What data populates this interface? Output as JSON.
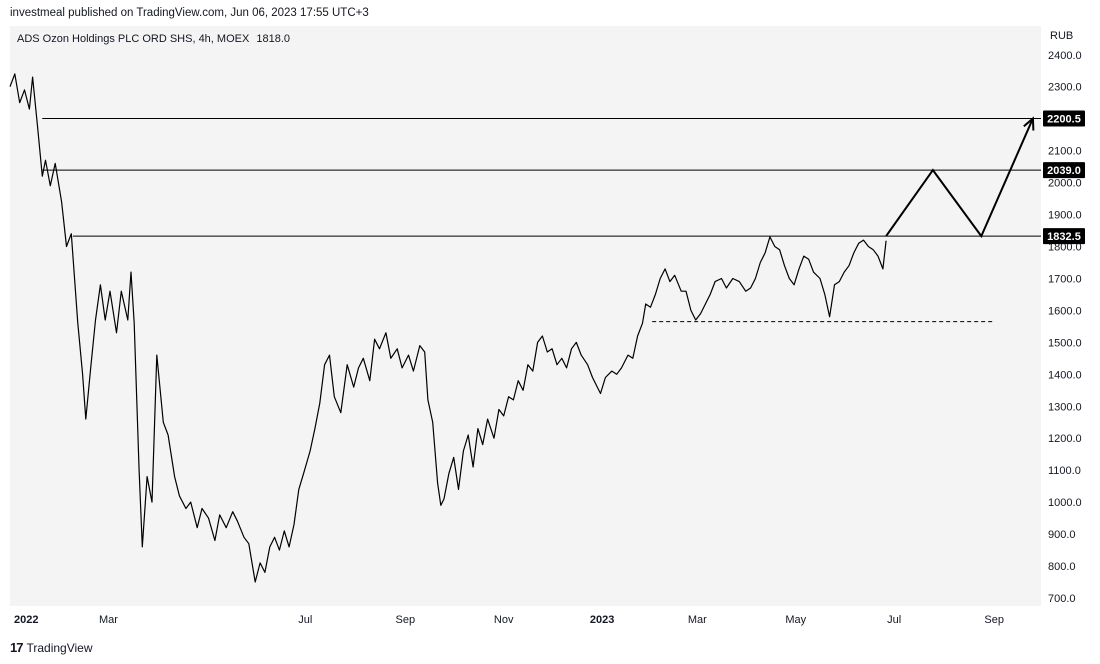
{
  "header": {
    "published": "investmeal published on TradingView.com, Jun 06, 2023 17:55 UTC+3"
  },
  "legend": {
    "symbol": "ADS Ozon Holdings PLC ORD SHS, 4h, MOEX",
    "last_price": "1818.0"
  },
  "footer": {
    "brand": "TradingView",
    "logo_glyph": "17"
  },
  "chart_data": {
    "type": "line",
    "currency": "RUB",
    "ylim": [
      675,
      2490
    ],
    "y_ticks": [
      700,
      800,
      900,
      1000,
      1100,
      1200,
      1300,
      1400,
      1500,
      1600,
      1700,
      1800,
      1900,
      2000,
      2100,
      2200,
      2300,
      2400
    ],
    "y_tick_labels": [
      "700.0",
      "800.0",
      "900.0",
      "1000.0",
      "1100.0",
      "1200.0",
      "1300.0",
      "1400.0",
      "1500.0",
      "1600.0",
      "1700.0",
      "1800.0",
      "1900.0",
      "2000.0",
      "2100.0",
      "2200.0",
      "2300.0",
      "2400.0"
    ],
    "xlim": [
      "2021-12-30",
      "2023-09-30"
    ],
    "x_ticks": [
      {
        "date": "2022-01-01",
        "label": "2022",
        "bold": true
      },
      {
        "date": "2022-03-01",
        "label": "Mar",
        "bold": false
      },
      {
        "date": "2022-07-01",
        "label": "Jul",
        "bold": false
      },
      {
        "date": "2022-09-01",
        "label": "Sep",
        "bold": false
      },
      {
        "date": "2022-11-01",
        "label": "Nov",
        "bold": false
      },
      {
        "date": "2023-01-01",
        "label": "2023",
        "bold": true
      },
      {
        "date": "2023-03-01",
        "label": "Mar",
        "bold": false
      },
      {
        "date": "2023-05-01",
        "label": "May",
        "bold": false
      },
      {
        "date": "2023-07-01",
        "label": "Jul",
        "bold": false
      },
      {
        "date": "2023-09-01",
        "label": "Sep",
        "bold": false
      }
    ],
    "series": [
      {
        "points": [
          [
            "2021-12-30",
            2300
          ],
          [
            "2022-01-02",
            2340
          ],
          [
            "2022-01-05",
            2250
          ],
          [
            "2022-01-08",
            2290
          ],
          [
            "2022-01-11",
            2230
          ],
          [
            "2022-01-13",
            2330
          ],
          [
            "2022-01-16",
            2180
          ],
          [
            "2022-01-19",
            2020
          ],
          [
            "2022-01-21",
            2070
          ],
          [
            "2022-01-24",
            1990
          ],
          [
            "2022-01-27",
            2060
          ],
          [
            "2022-01-31",
            1940
          ],
          [
            "2022-02-03",
            1800
          ],
          [
            "2022-02-06",
            1840
          ],
          [
            "2022-02-10",
            1560
          ],
          [
            "2022-02-13",
            1400
          ],
          [
            "2022-02-15",
            1260
          ],
          [
            "2022-02-18",
            1420
          ],
          [
            "2022-02-21",
            1570
          ],
          [
            "2022-02-24",
            1680
          ],
          [
            "2022-02-27",
            1570
          ],
          [
            "2022-03-02",
            1660
          ],
          [
            "2022-03-06",
            1530
          ],
          [
            "2022-03-09",
            1660
          ],
          [
            "2022-03-13",
            1570
          ],
          [
            "2022-03-15",
            1720
          ],
          [
            "2022-03-17",
            1560
          ],
          [
            "2022-03-20",
            1100
          ],
          [
            "2022-03-22",
            860
          ],
          [
            "2022-03-25",
            1080
          ],
          [
            "2022-03-28",
            1000
          ],
          [
            "2022-03-31",
            1460
          ],
          [
            "2022-04-04",
            1250
          ],
          [
            "2022-04-07",
            1210
          ],
          [
            "2022-04-11",
            1080
          ],
          [
            "2022-04-14",
            1020
          ],
          [
            "2022-04-18",
            980
          ],
          [
            "2022-04-21",
            1000
          ],
          [
            "2022-04-25",
            920
          ],
          [
            "2022-04-28",
            980
          ],
          [
            "2022-05-02",
            950
          ],
          [
            "2022-05-06",
            880
          ],
          [
            "2022-05-09",
            960
          ],
          [
            "2022-05-13",
            920
          ],
          [
            "2022-05-17",
            970
          ],
          [
            "2022-05-20",
            940
          ],
          [
            "2022-05-24",
            890
          ],
          [
            "2022-05-27",
            870
          ],
          [
            "2022-05-31",
            750
          ],
          [
            "2022-06-03",
            810
          ],
          [
            "2022-06-06",
            780
          ],
          [
            "2022-06-09",
            860
          ],
          [
            "2022-06-12",
            890
          ],
          [
            "2022-06-15",
            850
          ],
          [
            "2022-06-18",
            910
          ],
          [
            "2022-06-21",
            860
          ],
          [
            "2022-06-24",
            930
          ],
          [
            "2022-06-27",
            1040
          ],
          [
            "2022-06-30",
            1090
          ],
          [
            "2022-07-04",
            1160
          ],
          [
            "2022-07-07",
            1230
          ],
          [
            "2022-07-10",
            1310
          ],
          [
            "2022-07-13",
            1430
          ],
          [
            "2022-07-16",
            1460
          ],
          [
            "2022-07-19",
            1330
          ],
          [
            "2022-07-23",
            1280
          ],
          [
            "2022-07-27",
            1430
          ],
          [
            "2022-07-31",
            1360
          ],
          [
            "2022-08-03",
            1420
          ],
          [
            "2022-08-06",
            1450
          ],
          [
            "2022-08-10",
            1380
          ],
          [
            "2022-08-13",
            1510
          ],
          [
            "2022-08-16",
            1480
          ],
          [
            "2022-08-20",
            1530
          ],
          [
            "2022-08-23",
            1450
          ],
          [
            "2022-08-27",
            1480
          ],
          [
            "2022-08-30",
            1420
          ],
          [
            "2022-09-03",
            1460
          ],
          [
            "2022-09-06",
            1410
          ],
          [
            "2022-09-10",
            1490
          ],
          [
            "2022-09-13",
            1470
          ],
          [
            "2022-09-15",
            1320
          ],
          [
            "2022-09-18",
            1250
          ],
          [
            "2022-09-21",
            1060
          ],
          [
            "2022-09-23",
            990
          ],
          [
            "2022-09-25",
            1010
          ],
          [
            "2022-09-28",
            1090
          ],
          [
            "2022-10-01",
            1140
          ],
          [
            "2022-10-04",
            1040
          ],
          [
            "2022-10-07",
            1160
          ],
          [
            "2022-10-10",
            1210
          ],
          [
            "2022-10-13",
            1110
          ],
          [
            "2022-10-16",
            1230
          ],
          [
            "2022-10-19",
            1180
          ],
          [
            "2022-10-22",
            1260
          ],
          [
            "2022-10-26",
            1200
          ],
          [
            "2022-10-29",
            1290
          ],
          [
            "2022-11-01",
            1270
          ],
          [
            "2022-11-04",
            1330
          ],
          [
            "2022-11-07",
            1320
          ],
          [
            "2022-11-10",
            1380
          ],
          [
            "2022-11-13",
            1350
          ],
          [
            "2022-11-16",
            1430
          ],
          [
            "2022-11-19",
            1410
          ],
          [
            "2022-11-22",
            1500
          ],
          [
            "2022-11-25",
            1520
          ],
          [
            "2022-11-28",
            1470
          ],
          [
            "2022-12-01",
            1480
          ],
          [
            "2022-12-04",
            1430
          ],
          [
            "2022-12-07",
            1450
          ],
          [
            "2022-12-10",
            1420
          ],
          [
            "2022-12-13",
            1480
          ],
          [
            "2022-12-16",
            1500
          ],
          [
            "2022-12-19",
            1460
          ],
          [
            "2022-12-23",
            1430
          ],
          [
            "2022-12-26",
            1390
          ],
          [
            "2022-12-29",
            1360
          ],
          [
            "2022-12-31",
            1340
          ],
          [
            "2023-01-03",
            1390
          ],
          [
            "2023-01-07",
            1410
          ],
          [
            "2023-01-10",
            1400
          ],
          [
            "2023-01-13",
            1420
          ],
          [
            "2023-01-17",
            1460
          ],
          [
            "2023-01-20",
            1450
          ],
          [
            "2023-01-23",
            1520
          ],
          [
            "2023-01-26",
            1560
          ],
          [
            "2023-01-28",
            1620
          ],
          [
            "2023-01-31",
            1610
          ],
          [
            "2023-02-03",
            1650
          ],
          [
            "2023-02-06",
            1700
          ],
          [
            "2023-02-09",
            1730
          ],
          [
            "2023-02-12",
            1690
          ],
          [
            "2023-02-15",
            1710
          ],
          [
            "2023-02-19",
            1660
          ],
          [
            "2023-02-22",
            1660
          ],
          [
            "2023-02-25",
            1600
          ],
          [
            "2023-02-28",
            1570
          ],
          [
            "2023-03-03",
            1590
          ],
          [
            "2023-03-06",
            1620
          ],
          [
            "2023-03-09",
            1650
          ],
          [
            "2023-03-12",
            1690
          ],
          [
            "2023-03-16",
            1700
          ],
          [
            "2023-03-19",
            1670
          ],
          [
            "2023-03-23",
            1700
          ],
          [
            "2023-03-27",
            1690
          ],
          [
            "2023-03-31",
            1660
          ],
          [
            "2023-04-03",
            1670
          ],
          [
            "2023-04-06",
            1700
          ],
          [
            "2023-04-09",
            1750
          ],
          [
            "2023-04-12",
            1780
          ],
          [
            "2023-04-15",
            1830
          ],
          [
            "2023-04-18",
            1800
          ],
          [
            "2023-04-21",
            1790
          ],
          [
            "2023-04-24",
            1740
          ],
          [
            "2023-04-27",
            1700
          ],
          [
            "2023-04-30",
            1680
          ],
          [
            "2023-05-03",
            1730
          ],
          [
            "2023-05-06",
            1770
          ],
          [
            "2023-05-09",
            1760
          ],
          [
            "2023-05-12",
            1720
          ],
          [
            "2023-05-16",
            1700
          ],
          [
            "2023-05-19",
            1650
          ],
          [
            "2023-05-22",
            1580
          ],
          [
            "2023-05-25",
            1680
          ],
          [
            "2023-05-28",
            1690
          ],
          [
            "2023-05-31",
            1720
          ],
          [
            "2023-06-03",
            1740
          ],
          [
            "2023-06-06",
            1780
          ],
          [
            "2023-06-09",
            1810
          ],
          [
            "2023-06-12",
            1820
          ],
          [
            "2023-06-15",
            1800
          ],
          [
            "2023-06-18",
            1790
          ],
          [
            "2023-06-21",
            1770
          ],
          [
            "2023-06-24",
            1730
          ],
          [
            "2023-06-26",
            1818
          ]
        ]
      }
    ],
    "resistance_levels": [
      {
        "start": "2022-01-19",
        "price": 2200.5,
        "label": "2200.5"
      },
      {
        "start": "2022-01-19",
        "price": 2039.0,
        "label": "2039.0"
      },
      {
        "start": "2022-02-07",
        "price": 1832.5,
        "label": "1832.5"
      }
    ],
    "support_line": {
      "start": "2023-02-01",
      "end": "2023-08-31",
      "price": 1565
    },
    "projection": [
      [
        "2023-06-26",
        1832.5
      ],
      [
        "2023-07-25",
        2039
      ],
      [
        "2023-08-24",
        1832.5
      ],
      [
        "2023-09-25",
        2200.5
      ]
    ]
  }
}
